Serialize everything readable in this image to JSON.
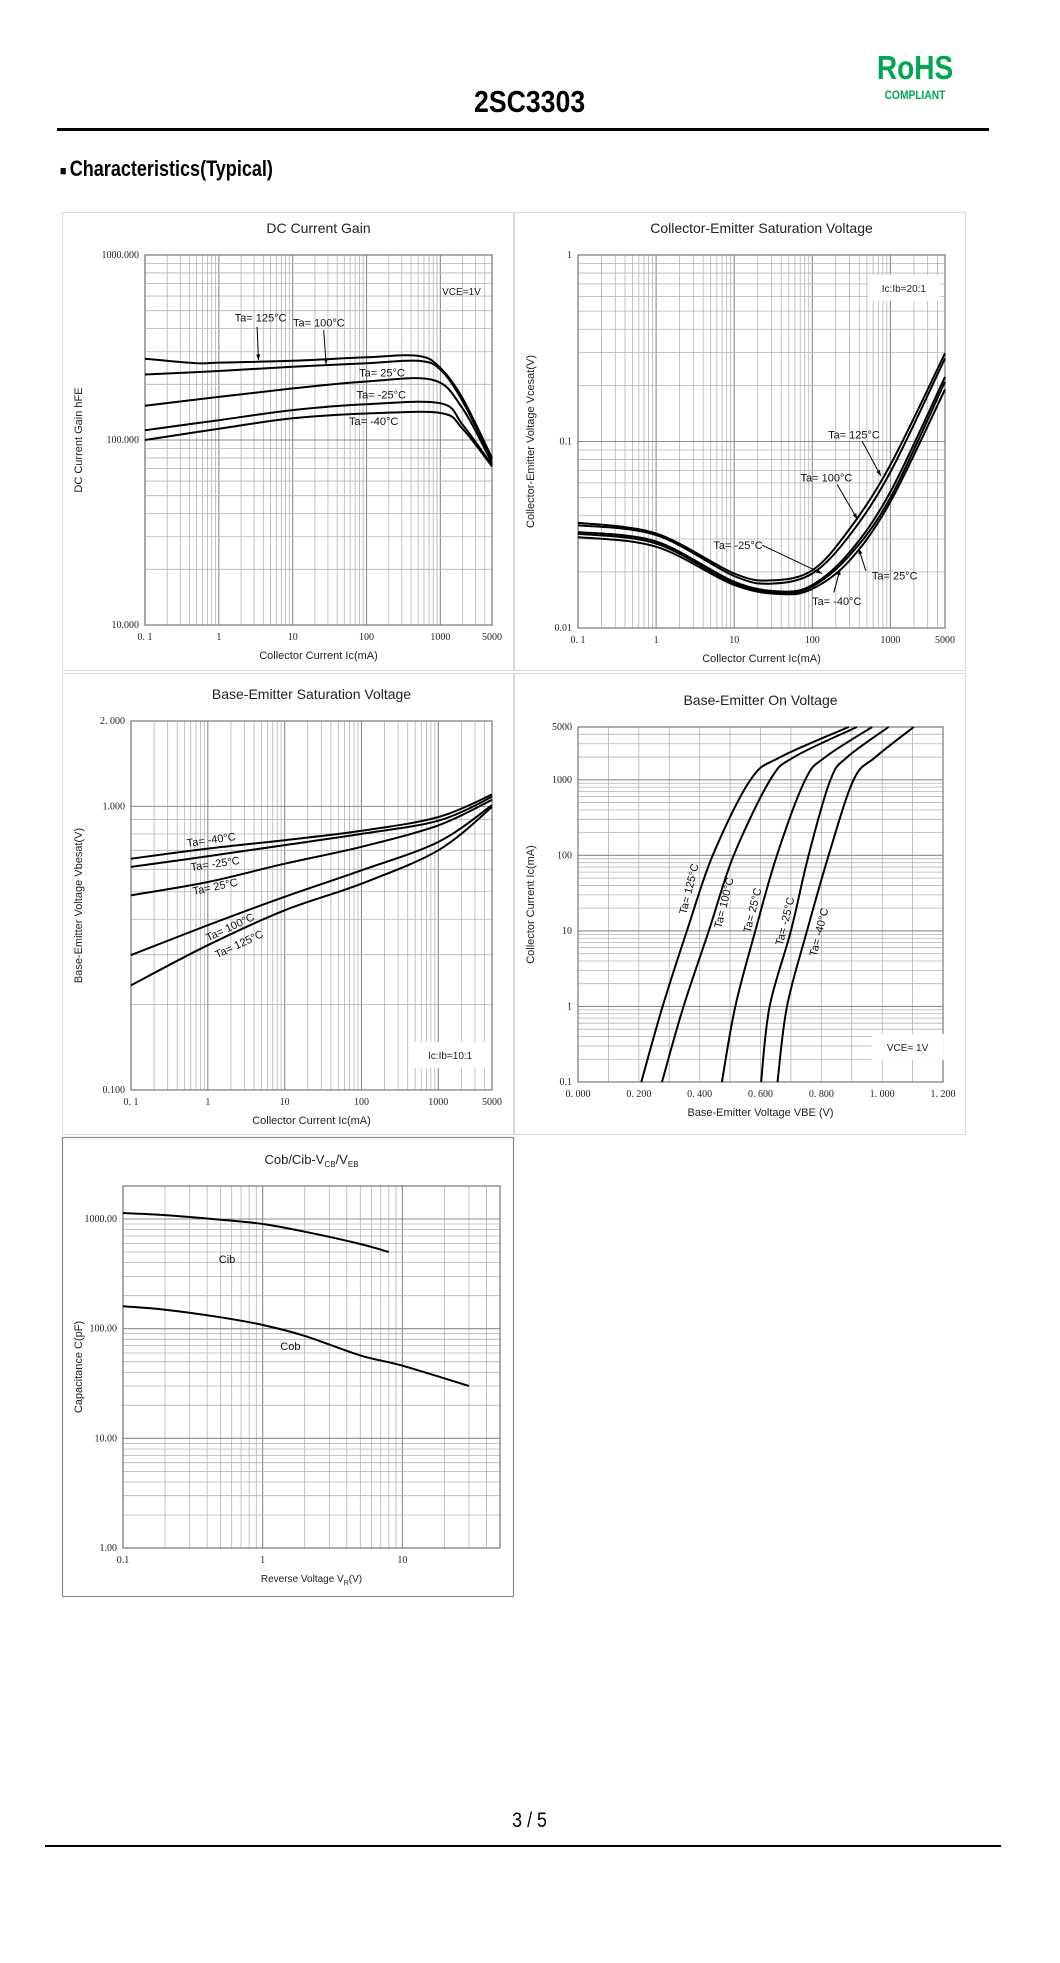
{
  "header": {
    "part_number": "2SC3303",
    "rohs": {
      "logo_text": "RoHS",
      "compliant_text": "COMPLIANT",
      "color": "#00a651"
    }
  },
  "section": {
    "bullet": "■",
    "title": "Characteristics(Typical)"
  },
  "footer": {
    "page": "3 / 5"
  },
  "chart_data": [
    {
      "type": "line",
      "title": "DC Current Gain",
      "xlabel": "Collector Current   Ic(mA)",
      "ylabel": "DC Current Gain   hFE",
      "xscale": "log",
      "yscale": "log",
      "xlim": [
        0.1,
        5000
      ],
      "ylim": [
        10,
        1000
      ],
      "grid": true,
      "xticks": [
        {
          "value": 0.1,
          "label": "0. 1"
        },
        {
          "value": 1,
          "label": "1"
        },
        {
          "value": 10,
          "label": "10"
        },
        {
          "value": 100,
          "label": "100"
        },
        {
          "value": 1000,
          "label": "1000"
        },
        {
          "value": 5000,
          "label": "5000"
        }
      ],
      "yticks": [
        {
          "value": 1000,
          "label": "1000.000"
        },
        {
          "value": 100,
          "label": "100.000"
        },
        {
          "value": 10,
          "label": "10.000"
        }
      ],
      "condition": "VCE=1V",
      "series": [
        {
          "name": "Ta= 125°C",
          "x": [
            0.1,
            0.5,
            1,
            10,
            100,
            500,
            1000,
            2000,
            5000
          ],
          "y": [
            275,
            260,
            262,
            268,
            280,
            285,
            245,
            168,
            80
          ]
        },
        {
          "name": "Ta= 100°C",
          "x": [
            0.1,
            1,
            10,
            100,
            500,
            1000,
            2000,
            5000
          ],
          "y": [
            226,
            236,
            249,
            260,
            268,
            240,
            162,
            78
          ]
        },
        {
          "name": "Ta= 25°C",
          "x": [
            0.1,
            1,
            10,
            100,
            800,
            2000,
            5000
          ],
          "y": [
            153,
            171,
            190,
            207,
            211,
            148,
            75
          ]
        },
        {
          "name": "Ta= -25°C",
          "x": [
            0.1,
            1,
            10,
            100,
            1000,
            2000,
            5000
          ],
          "y": [
            113,
            128,
            145,
            156,
            158,
            121,
            73
          ]
        },
        {
          "name": "Ta= -40°C",
          "x": [
            0.1,
            1,
            10,
            100,
            1000,
            2000,
            5000
          ],
          "y": [
            100,
            115,
            131,
            139,
            140,
            115,
            72
          ]
        }
      ]
    },
    {
      "type": "line",
      "title": "Collector-Emitter Saturation Voltage",
      "xlabel": "Collector Current   Ic(mA)",
      "ylabel": "Collector-Emitter Voltage   Vcesat(V)",
      "xscale": "log",
      "yscale": "log",
      "xlim": [
        0.1,
        5000
      ],
      "ylim": [
        0.01,
        1
      ],
      "grid": true,
      "xticks": [
        {
          "value": 0.1,
          "label": "0. 1"
        },
        {
          "value": 1,
          "label": "1"
        },
        {
          "value": 10,
          "label": "10"
        },
        {
          "value": 100,
          "label": "100"
        },
        {
          "value": 1000,
          "label": "1000"
        },
        {
          "value": 5000,
          "label": "5000"
        }
      ],
      "yticks": [
        {
          "value": 1,
          "label": "1"
        },
        {
          "value": 0.1,
          "label": "0.1"
        },
        {
          "value": 0.01,
          "label": "0.01"
        }
      ],
      "condition": "Ic:Ib=20:1",
      "series": [
        {
          "name": "Ta= 125°C",
          "x": [
            0.1,
            1,
            10,
            30,
            100,
            300,
            1000,
            5000
          ],
          "y": [
            0.0367,
            0.0321,
            0.0196,
            0.018,
            0.0204,
            0.034,
            0.075,
            0.297
          ]
        },
        {
          "name": "Ta= 100°C",
          "x": [
            0.1,
            1,
            10,
            30,
            100,
            300,
            1000,
            5000
          ],
          "y": [
            0.0356,
            0.0315,
            0.019,
            0.0173,
            0.0196,
            0.0314,
            0.0686,
            0.279
          ]
        },
        {
          "name": "Ta= 25°C",
          "x": [
            0.1,
            1,
            10,
            40,
            100,
            300,
            1000,
            5000
          ],
          "y": [
            0.0327,
            0.0291,
            0.0177,
            0.0157,
            0.017,
            0.0255,
            0.0537,
            0.222
          ]
        },
        {
          "name": "Ta= -25°C",
          "x": [
            0.1,
            1,
            10,
            40,
            100,
            300,
            1000,
            5000
          ],
          "y": [
            0.032,
            0.0284,
            0.0173,
            0.0154,
            0.0167,
            0.0245,
            0.05,
            0.209
          ]
        },
        {
          "name": "Ta= -40°C",
          "x": [
            0.1,
            1,
            10,
            40,
            100,
            300,
            1000,
            5000
          ],
          "y": [
            0.0307,
            0.0273,
            0.017,
            0.0152,
            0.0162,
            0.023,
            0.0475,
            0.19
          ]
        }
      ]
    },
    {
      "type": "line",
      "title": "Base-Emitter Saturation Voltage",
      "xlabel": "Collector Current   Ic(mA)",
      "ylabel": "Base-Emitter Voltage   Vbesat(V)",
      "xscale": "log",
      "yscale": "log",
      "xlim": [
        0.1,
        5000
      ],
      "ylim": [
        0.1,
        2
      ],
      "grid": true,
      "xticks": [
        {
          "value": 0.1,
          "label": "0. 1"
        },
        {
          "value": 1,
          "label": "1"
        },
        {
          "value": 10,
          "label": "10"
        },
        {
          "value": 100,
          "label": "100"
        },
        {
          "value": 1000,
          "label": "1000"
        },
        {
          "value": 5000,
          "label": "5000"
        }
      ],
      "yticks": [
        {
          "value": 2,
          "label": "2. 000"
        },
        {
          "value": 1,
          "label": "1.000"
        },
        {
          "value": 0.1,
          "label": "0.100"
        }
      ],
      "condition": "Ic:Ib=10:1",
      "series": [
        {
          "name": "Ta= 125°C",
          "x": [
            0.1,
            1,
            10,
            100,
            1000,
            5000
          ],
          "y": [
            0.234,
            0.324,
            0.43,
            0.534,
            0.7,
            0.995
          ]
        },
        {
          "name": "Ta= 100°C",
          "x": [
            0.1,
            1,
            10,
            100,
            1000,
            5000
          ],
          "y": [
            0.299,
            0.381,
            0.48,
            0.595,
            0.749,
            1.01
          ]
        },
        {
          "name": "Ta= 25°C",
          "x": [
            0.1,
            1,
            10,
            100,
            1000,
            5000
          ],
          "y": [
            0.486,
            0.541,
            0.628,
            0.72,
            0.857,
            1.055
          ]
        },
        {
          "name": "Ta= -25°C",
          "x": [
            0.1,
            1,
            10,
            100,
            1000,
            5000
          ],
          "y": [
            0.612,
            0.667,
            0.73,
            0.8,
            0.89,
            1.08
          ]
        },
        {
          "name": "Ta= -40°C",
          "x": [
            0.1,
            1,
            10,
            100,
            1000,
            5000
          ],
          "y": [
            0.654,
            0.71,
            0.76,
            0.82,
            0.917,
            1.1
          ]
        }
      ]
    },
    {
      "type": "line",
      "title": "Base-Emitter On Voltage",
      "xlabel": "Base-Emitter Voltage   VBE (V)",
      "ylabel": "Collector Current   Ic(mA)",
      "xscale": "linear",
      "yscale": "log",
      "xlim": [
        0,
        1.2
      ],
      "ylim": [
        0.1,
        5000
      ],
      "grid": true,
      "xticks": [
        {
          "value": 0,
          "label": "0. 000"
        },
        {
          "value": 0.2,
          "label": "0. 200"
        },
        {
          "value": 0.4,
          "label": "0. 400"
        },
        {
          "value": 0.6,
          "label": "0. 600"
        },
        {
          "value": 0.8,
          "label": "0. 800"
        },
        {
          "value": 1.0,
          "label": "1. 000"
        },
        {
          "value": 1.2,
          "label": "1. 200"
        }
      ],
      "yticks": [
        {
          "value": 5000,
          "label": "5000"
        },
        {
          "value": 1000,
          "label": "1000"
        },
        {
          "value": 100,
          "label": "100"
        },
        {
          "value": 10,
          "label": "10"
        },
        {
          "value": 1,
          "label": "1"
        },
        {
          "value": 0.1,
          "label": "0.1"
        }
      ],
      "condition": "VCE= 1V",
      "series": [
        {
          "name": "Ta= 125°C",
          "x": [
            0.208,
            0.278,
            0.358,
            0.443,
            0.567,
            0.665,
            0.89
          ],
          "y": [
            0.1,
            1,
            10,
            100,
            1000,
            2000,
            5000
          ]
        },
        {
          "name": "Ta= 100°C",
          "x": [
            0.276,
            0.347,
            0.43,
            0.512,
            0.632,
            0.71,
            0.917
          ],
          "y": [
            0.1,
            1,
            10,
            100,
            1000,
            2000,
            5000
          ]
        },
        {
          "name": "Ta= 25°C",
          "x": [
            0.473,
            0.517,
            0.583,
            0.654,
            0.747,
            0.813,
            0.967
          ],
          "y": [
            0.1,
            1,
            10,
            100,
            1000,
            2000,
            5000
          ]
        },
        {
          "name": "Ta= -25°C",
          "x": [
            0.602,
            0.63,
            0.7,
            0.758,
            0.83,
            0.885,
            1.021
          ],
          "y": [
            0.1,
            1,
            10,
            100,
            1000,
            2000,
            5000
          ]
        },
        {
          "name": "Ta= -40°C",
          "x": [
            0.656,
            0.687,
            0.753,
            0.824,
            0.906,
            0.978,
            1.104
          ],
          "y": [
            0.1,
            1,
            10,
            100,
            1000,
            2000,
            5000
          ]
        }
      ]
    },
    {
      "type": "line",
      "title": {
        "main": "Cob/Cib-V",
        "sub1": "CB",
        "mid": "/V",
        "sub2": "EB"
      },
      "xlabel": {
        "main": "Reverse Voltage   V",
        "sub": "R",
        "unit": "(V)"
      },
      "ylabel": "Capacitance   C(pF)",
      "xscale": "log",
      "yscale": "log",
      "xlim": [
        0.1,
        50
      ],
      "ylim": [
        1,
        2000
      ],
      "grid": true,
      "xticks": [
        {
          "value": 0.1,
          "label": "0.1"
        },
        {
          "value": 1,
          "label": "1"
        },
        {
          "value": 10,
          "label": "10"
        }
      ],
      "yticks": [
        {
          "value": 1000,
          "label": "1000.00"
        },
        {
          "value": 100,
          "label": "100.00"
        },
        {
          "value": 10,
          "label": "10.00"
        },
        {
          "value": 1,
          "label": "1.00"
        }
      ],
      "series": [
        {
          "name": "Cib",
          "x": [
            0.1,
            0.2,
            0.5,
            1,
            2,
            5,
            8
          ],
          "y": [
            1134,
            1085,
            986,
            900,
            766,
            592,
            500
          ]
        },
        {
          "name": "Cob",
          "x": [
            0.1,
            0.2,
            0.5,
            1,
            2,
            5,
            10,
            30
          ],
          "y": [
            160,
            149,
            127,
            108,
            86,
            57,
            46,
            30
          ]
        }
      ]
    }
  ]
}
